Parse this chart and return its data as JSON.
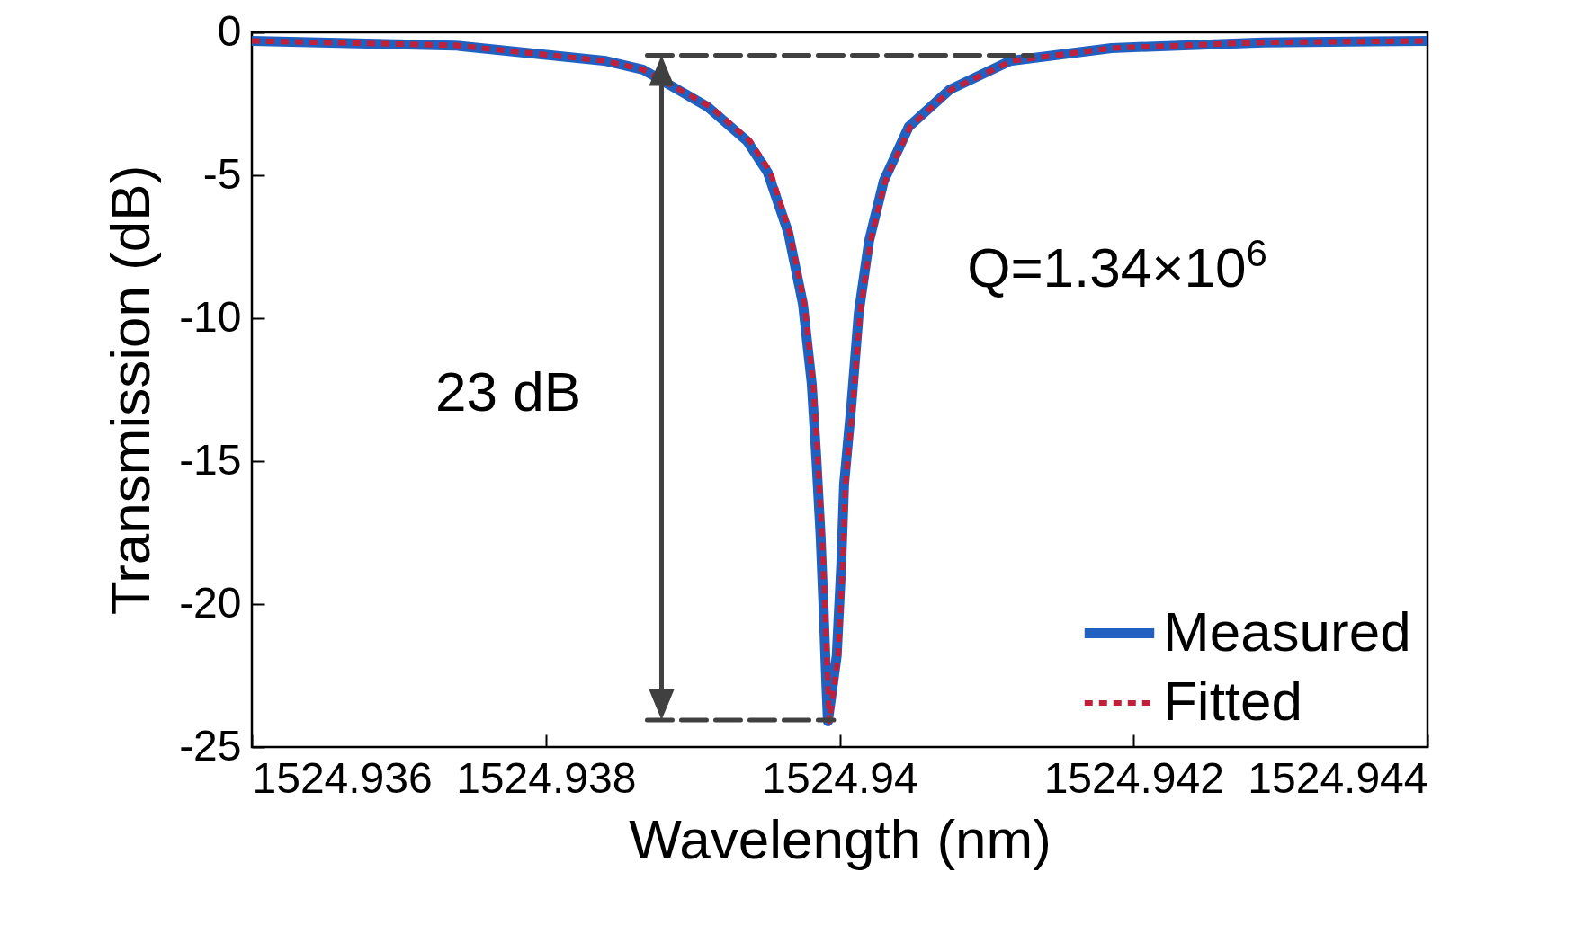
{
  "chart_data": {
    "type": "line",
    "xlabel": "Wavelength (nm)",
    "ylabel": "Transmission (dB)",
    "xlim": [
      1524.936,
      1524.944
    ],
    "xticks": [
      1524.936,
      1524.938,
      1524.94,
      1524.942,
      1524.944
    ],
    "ylim": [
      -25,
      0
    ],
    "yticks": [
      0,
      -5,
      -10,
      -15,
      -20,
      -25
    ],
    "grid": false,
    "legend": "bottom right",
    "annotations": [
      "23 dB",
      "Q=1.34×10$^{6}$"
    ],
    "series": [
      {
        "name": "Measured",
        "color": "#2060c0",
        "line_style": "solid",
        "x": [
          1524.936,
          1524.93738,
          1524.93841,
          1524.93866,
          1524.9391,
          1524.93937,
          1524.93951,
          1524.93965,
          1524.93975,
          1524.93981,
          1524.93984,
          1524.93987,
          1524.93989,
          1524.93991,
          1524.93992,
          1524.93998,
          1524.94001,
          1524.94003,
          1524.94008,
          1524.94013,
          1524.9402,
          1524.9403,
          1524.94047,
          1524.94075,
          1524.94116,
          1524.94185,
          1524.94288,
          1524.944
        ],
        "values": [
          -0.3,
          -0.46,
          -1.0,
          -1.3,
          -2.6,
          -3.8,
          -4.9,
          -7.0,
          -9.5,
          -12.3,
          -14.8,
          -17.6,
          -20.1,
          -22.9,
          -24.1,
          -21.8,
          -18.7,
          -15.8,
          -13.0,
          -9.8,
          -7.3,
          -5.2,
          -3.3,
          -2.0,
          -1.0,
          -0.55,
          -0.35,
          -0.3
        ]
      },
      {
        "name": "Fitted",
        "color": "#c0203a",
        "line_style": "dotted",
        "x": [
          1524.936,
          1524.93738,
          1524.93841,
          1524.93866,
          1524.93912,
          1524.93939,
          1524.93953,
          1524.93966,
          1524.93976,
          1524.93982,
          1524.93985,
          1524.93988,
          1524.9399,
          1524.93992,
          1524.93993,
          1524.93999,
          1524.94002,
          1524.94004,
          1524.94009,
          1524.94014,
          1524.94021,
          1524.94031,
          1524.94048,
          1524.94076,
          1524.94117,
          1524.94185,
          1524.94288,
          1524.944
        ],
        "values": [
          -0.3,
          -0.45,
          -1.0,
          -1.3,
          -2.6,
          -3.8,
          -4.9,
          -7.0,
          -9.5,
          -12.3,
          -14.8,
          -17.6,
          -20.1,
          -22.9,
          -24.1,
          -21.8,
          -18.7,
          -15.8,
          -13.0,
          -9.8,
          -7.3,
          -5.2,
          -3.3,
          -2.0,
          -1.0,
          -0.55,
          -0.35,
          -0.3
        ]
      },
      {
        "color": "#404040",
        "line_style": "dashed",
        "x": [
          1524.93869,
          1524.94131
        ],
        "values": [
          -0.8,
          -0.8
        ]
      },
      {
        "color": "#404040",
        "line_style": "dashed",
        "x": [
          1524.93869,
          1524.93996
        ],
        "values": [
          -24.06,
          -24.06
        ]
      }
    ]
  }
}
